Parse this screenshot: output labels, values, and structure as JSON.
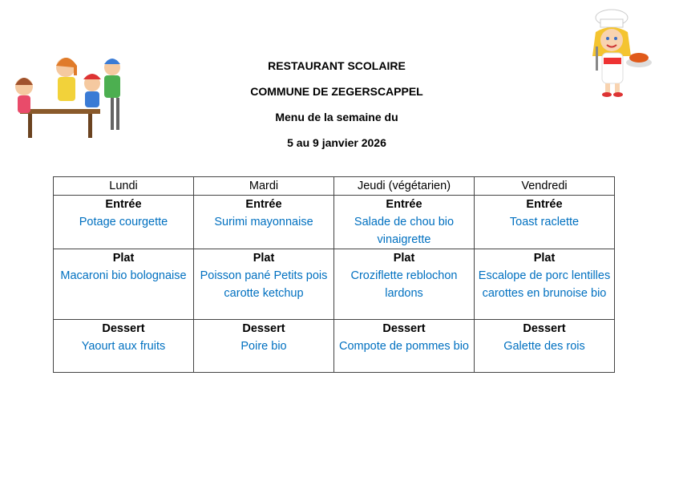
{
  "header": {
    "line1": "RESTAURANT SCOLAIRE",
    "line2": "COMMUNE DE ZEGERSCAPPEL",
    "line3": "Menu de la semaine du",
    "line4": "5 au 9 janvier 2026"
  },
  "colors": {
    "dish": "#0070c0",
    "heading": "#000000"
  },
  "menu": {
    "days": [
      "Lundi",
      "Mardi",
      "Jeudi (végétarien)",
      "Vendredi"
    ],
    "rows": [
      {
        "category": "Entrée",
        "dishes": [
          "Potage courgette",
          "Surimi mayonnaise",
          "Salade de chou bio vinaigrette",
          "Toast raclette"
        ]
      },
      {
        "category": "Plat",
        "dishes": [
          "Macaroni bio bolognaise",
          "Poisson pané Petits pois carotte ketchup",
          "Croziflette reblochon lardons",
          "Escalope de porc lentilles carottes en brunoise bio"
        ]
      },
      {
        "category": "Dessert",
        "dishes": [
          "Yaourt aux fruits",
          "Poire bio",
          "Compote de pommes bio",
          "Galette des rois"
        ]
      }
    ]
  },
  "images": {
    "left": "children-eating-illustration",
    "right": "chef-girl-illustration"
  }
}
